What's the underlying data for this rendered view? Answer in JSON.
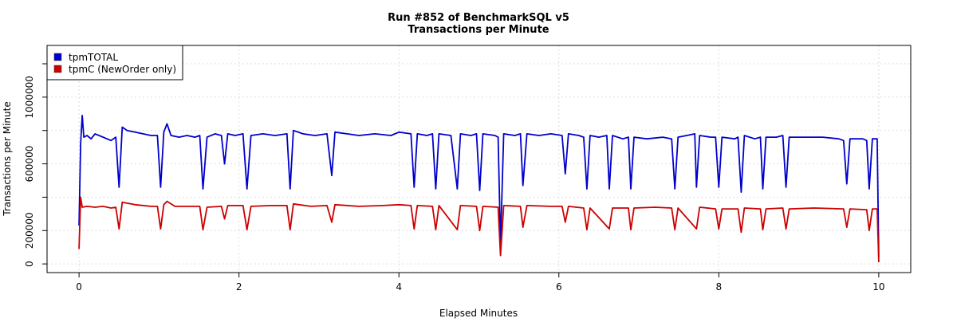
{
  "chart_data": {
    "type": "line",
    "title": "Run #852 of BenchmarkSQL v5",
    "subtitle": "Transactions per Minute",
    "xlabel": "Elapsed Minutes",
    "ylabel": "Transactions per Minute",
    "xlim": [
      -0.4,
      10.4
    ],
    "ylim": [
      -52000,
      1310000
    ],
    "x_ticks": [
      0,
      2,
      4,
      6,
      8,
      10
    ],
    "x_tick_labels": [
      "0",
      "2",
      "4",
      "6",
      "8",
      "10"
    ],
    "y_ticks": [
      0,
      200000,
      400000,
      600000,
      800000,
      1000000,
      1200000
    ],
    "y_tick_labels": [
      "0",
      "200000",
      "",
      "600000",
      "",
      "1000000",
      ""
    ],
    "grid": true,
    "legend_placement": "top-left",
    "series": [
      {
        "name": "tpmTOTAL",
        "color": "#0000cc",
        "points": [
          [
            0,
            230000
          ],
          [
            0.02,
            720000
          ],
          [
            0.04,
            890000
          ],
          [
            0.06,
            760000
          ],
          [
            0.1,
            770000
          ],
          [
            0.15,
            750000
          ],
          [
            0.2,
            780000
          ],
          [
            0.3,
            760000
          ],
          [
            0.4,
            740000
          ],
          [
            0.46,
            760000
          ],
          [
            0.5,
            460000
          ],
          [
            0.54,
            820000
          ],
          [
            0.6,
            800000
          ],
          [
            0.7,
            790000
          ],
          [
            0.8,
            780000
          ],
          [
            0.9,
            770000
          ],
          [
            0.98,
            770000
          ],
          [
            1.02,
            460000
          ],
          [
            1.06,
            790000
          ],
          [
            1.1,
            840000
          ],
          [
            1.15,
            770000
          ],
          [
            1.25,
            760000
          ],
          [
            1.35,
            770000
          ],
          [
            1.45,
            760000
          ],
          [
            1.51,
            770000
          ],
          [
            1.55,
            450000
          ],
          [
            1.6,
            760000
          ],
          [
            1.7,
            780000
          ],
          [
            1.78,
            770000
          ],
          [
            1.82,
            600000
          ],
          [
            1.86,
            780000
          ],
          [
            1.95,
            770000
          ],
          [
            2.05,
            780000
          ],
          [
            2.1,
            450000
          ],
          [
            2.15,
            770000
          ],
          [
            2.3,
            780000
          ],
          [
            2.45,
            770000
          ],
          [
            2.6,
            780000
          ],
          [
            2.64,
            450000
          ],
          [
            2.68,
            800000
          ],
          [
            2.8,
            780000
          ],
          [
            2.95,
            770000
          ],
          [
            3.1,
            780000
          ],
          [
            3.16,
            530000
          ],
          [
            3.2,
            790000
          ],
          [
            3.35,
            780000
          ],
          [
            3.5,
            770000
          ],
          [
            3.7,
            780000
          ],
          [
            3.9,
            770000
          ],
          [
            4.0,
            790000
          ],
          [
            4.15,
            780000
          ],
          [
            4.19,
            460000
          ],
          [
            4.23,
            780000
          ],
          [
            4.35,
            770000
          ],
          [
            4.42,
            780000
          ],
          [
            4.46,
            450000
          ],
          [
            4.5,
            780000
          ],
          [
            4.65,
            770000
          ],
          [
            4.73,
            450000
          ],
          [
            4.77,
            780000
          ],
          [
            4.9,
            770000
          ],
          [
            4.97,
            780000
          ],
          [
            5.01,
            440000
          ],
          [
            5.05,
            780000
          ],
          [
            5.2,
            770000
          ],
          [
            5.24,
            760000
          ],
          [
            5.27,
            120000
          ],
          [
            5.31,
            780000
          ],
          [
            5.45,
            770000
          ],
          [
            5.52,
            780000
          ],
          [
            5.55,
            470000
          ],
          [
            5.6,
            780000
          ],
          [
            5.75,
            770000
          ],
          [
            5.9,
            780000
          ],
          [
            6.04,
            770000
          ],
          [
            6.08,
            540000
          ],
          [
            6.12,
            780000
          ],
          [
            6.25,
            770000
          ],
          [
            6.31,
            760000
          ],
          [
            6.35,
            450000
          ],
          [
            6.39,
            770000
          ],
          [
            6.5,
            760000
          ],
          [
            6.6,
            770000
          ],
          [
            6.63,
            450000
          ],
          [
            6.67,
            770000
          ],
          [
            6.8,
            750000
          ],
          [
            6.87,
            760000
          ],
          [
            6.9,
            450000
          ],
          [
            6.94,
            760000
          ],
          [
            7.1,
            750000
          ],
          [
            7.3,
            760000
          ],
          [
            7.41,
            750000
          ],
          [
            7.45,
            450000
          ],
          [
            7.49,
            760000
          ],
          [
            7.6,
            770000
          ],
          [
            7.7,
            780000
          ],
          [
            7.72,
            460000
          ],
          [
            7.76,
            770000
          ],
          [
            7.9,
            760000
          ],
          [
            7.96,
            760000
          ],
          [
            8.0,
            460000
          ],
          [
            8.04,
            760000
          ],
          [
            8.2,
            750000
          ],
          [
            8.24,
            760000
          ],
          [
            8.28,
            430000
          ],
          [
            8.32,
            770000
          ],
          [
            8.45,
            750000
          ],
          [
            8.52,
            760000
          ],
          [
            8.55,
            450000
          ],
          [
            8.59,
            760000
          ],
          [
            8.72,
            760000
          ],
          [
            8.8,
            770000
          ],
          [
            8.84,
            460000
          ],
          [
            8.88,
            760000
          ],
          [
            9.1,
            760000
          ],
          [
            9.3,
            760000
          ],
          [
            9.5,
            750000
          ],
          [
            9.56,
            740000
          ],
          [
            9.6,
            480000
          ],
          [
            9.64,
            750000
          ],
          [
            9.8,
            750000
          ],
          [
            9.85,
            740000
          ],
          [
            9.88,
            450000
          ],
          [
            9.92,
            750000
          ],
          [
            9.98,
            750000
          ],
          [
            10.0,
            40000
          ]
        ]
      },
      {
        "name": "tpmC (NewOrder only)",
        "color": "#cc0000",
        "points": [
          [
            0,
            90000
          ],
          [
            0.02,
            400000
          ],
          [
            0.04,
            340000
          ],
          [
            0.1,
            345000
          ],
          [
            0.2,
            340000
          ],
          [
            0.3,
            345000
          ],
          [
            0.4,
            335000
          ],
          [
            0.46,
            340000
          ],
          [
            0.5,
            210000
          ],
          [
            0.54,
            370000
          ],
          [
            0.7,
            355000
          ],
          [
            0.9,
            345000
          ],
          [
            0.98,
            345000
          ],
          [
            1.02,
            210000
          ],
          [
            1.06,
            355000
          ],
          [
            1.1,
            375000
          ],
          [
            1.2,
            345000
          ],
          [
            1.35,
            345000
          ],
          [
            1.51,
            345000
          ],
          [
            1.55,
            205000
          ],
          [
            1.6,
            340000
          ],
          [
            1.78,
            345000
          ],
          [
            1.82,
            270000
          ],
          [
            1.86,
            350000
          ],
          [
            2.05,
            350000
          ],
          [
            2.1,
            205000
          ],
          [
            2.15,
            345000
          ],
          [
            2.4,
            350000
          ],
          [
            2.6,
            350000
          ],
          [
            2.64,
            205000
          ],
          [
            2.68,
            360000
          ],
          [
            2.9,
            345000
          ],
          [
            3.1,
            350000
          ],
          [
            3.16,
            250000
          ],
          [
            3.2,
            355000
          ],
          [
            3.5,
            345000
          ],
          [
            3.8,
            350000
          ],
          [
            4.0,
            355000
          ],
          [
            4.15,
            350000
          ],
          [
            4.19,
            210000
          ],
          [
            4.23,
            350000
          ],
          [
            4.42,
            345000
          ],
          [
            4.46,
            205000
          ],
          [
            4.5,
            350000
          ],
          [
            4.73,
            205000
          ],
          [
            4.77,
            350000
          ],
          [
            4.97,
            345000
          ],
          [
            5.01,
            200000
          ],
          [
            5.05,
            345000
          ],
          [
            5.24,
            340000
          ],
          [
            5.27,
            50000
          ],
          [
            5.31,
            350000
          ],
          [
            5.52,
            345000
          ],
          [
            5.55,
            220000
          ],
          [
            5.6,
            350000
          ],
          [
            5.9,
            345000
          ],
          [
            6.04,
            345000
          ],
          [
            6.08,
            250000
          ],
          [
            6.12,
            345000
          ],
          [
            6.31,
            335000
          ],
          [
            6.35,
            205000
          ],
          [
            6.39,
            335000
          ],
          [
            6.63,
            210000
          ],
          [
            6.67,
            335000
          ],
          [
            6.87,
            335000
          ],
          [
            6.9,
            205000
          ],
          [
            6.94,
            335000
          ],
          [
            7.2,
            340000
          ],
          [
            7.41,
            335000
          ],
          [
            7.45,
            205000
          ],
          [
            7.49,
            335000
          ],
          [
            7.72,
            210000
          ],
          [
            7.76,
            340000
          ],
          [
            7.96,
            330000
          ],
          [
            8.0,
            210000
          ],
          [
            8.04,
            330000
          ],
          [
            8.24,
            330000
          ],
          [
            8.28,
            190000
          ],
          [
            8.32,
            335000
          ],
          [
            8.52,
            330000
          ],
          [
            8.55,
            205000
          ],
          [
            8.59,
            330000
          ],
          [
            8.8,
            335000
          ],
          [
            8.84,
            210000
          ],
          [
            8.88,
            330000
          ],
          [
            9.2,
            335000
          ],
          [
            9.56,
            330000
          ],
          [
            9.6,
            220000
          ],
          [
            9.64,
            330000
          ],
          [
            9.85,
            325000
          ],
          [
            9.88,
            200000
          ],
          [
            9.92,
            330000
          ],
          [
            9.98,
            330000
          ],
          [
            10.0,
            10000
          ]
        ]
      }
    ]
  }
}
